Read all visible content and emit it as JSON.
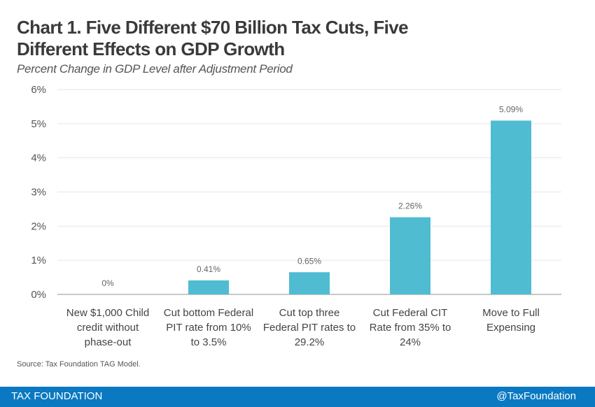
{
  "header": {
    "title": "Chart 1. Five Different $70 Billion Tax Cuts, Five Different Effects on GDP Growth",
    "subtitle": "Percent Change in GDP Level after Adjustment Period"
  },
  "source": "Source: Tax Foundation TAG Model.",
  "footer": {
    "brand": "TAX FOUNDATION",
    "handle": "@TaxFoundation"
  },
  "colors": {
    "bar": "#4fbcd2",
    "footer": "#0a79c2"
  },
  "chart_data": {
    "type": "bar",
    "title": "Chart 1. Five Different $70 Billion Tax Cuts, Five Different Effects on GDP Growth",
    "subtitle": "Percent Change in GDP Level after Adjustment Period",
    "xlabel": "",
    "ylabel": "",
    "ylim": [
      0,
      6
    ],
    "yticks": [
      "0%",
      "1%",
      "2%",
      "3%",
      "4%",
      "5%",
      "6%"
    ],
    "grid": true,
    "categories": [
      [
        "New $1,000 Child",
        "credit without",
        "phase-out"
      ],
      [
        "Cut bottom Federal",
        "PIT rate from 10%",
        "to 3.5%"
      ],
      [
        "Cut top three",
        "Federal PIT rates to",
        "29.2%"
      ],
      [
        "Cut Federal CIT",
        "Rate from 35% to",
        "24%"
      ],
      [
        "Move to Full",
        "Expensing"
      ]
    ],
    "values": [
      0,
      0.41,
      0.65,
      2.26,
      5.09
    ],
    "data_labels": [
      "0%",
      "0.41%",
      "0.65%",
      "2.26%",
      "5.09%"
    ]
  }
}
